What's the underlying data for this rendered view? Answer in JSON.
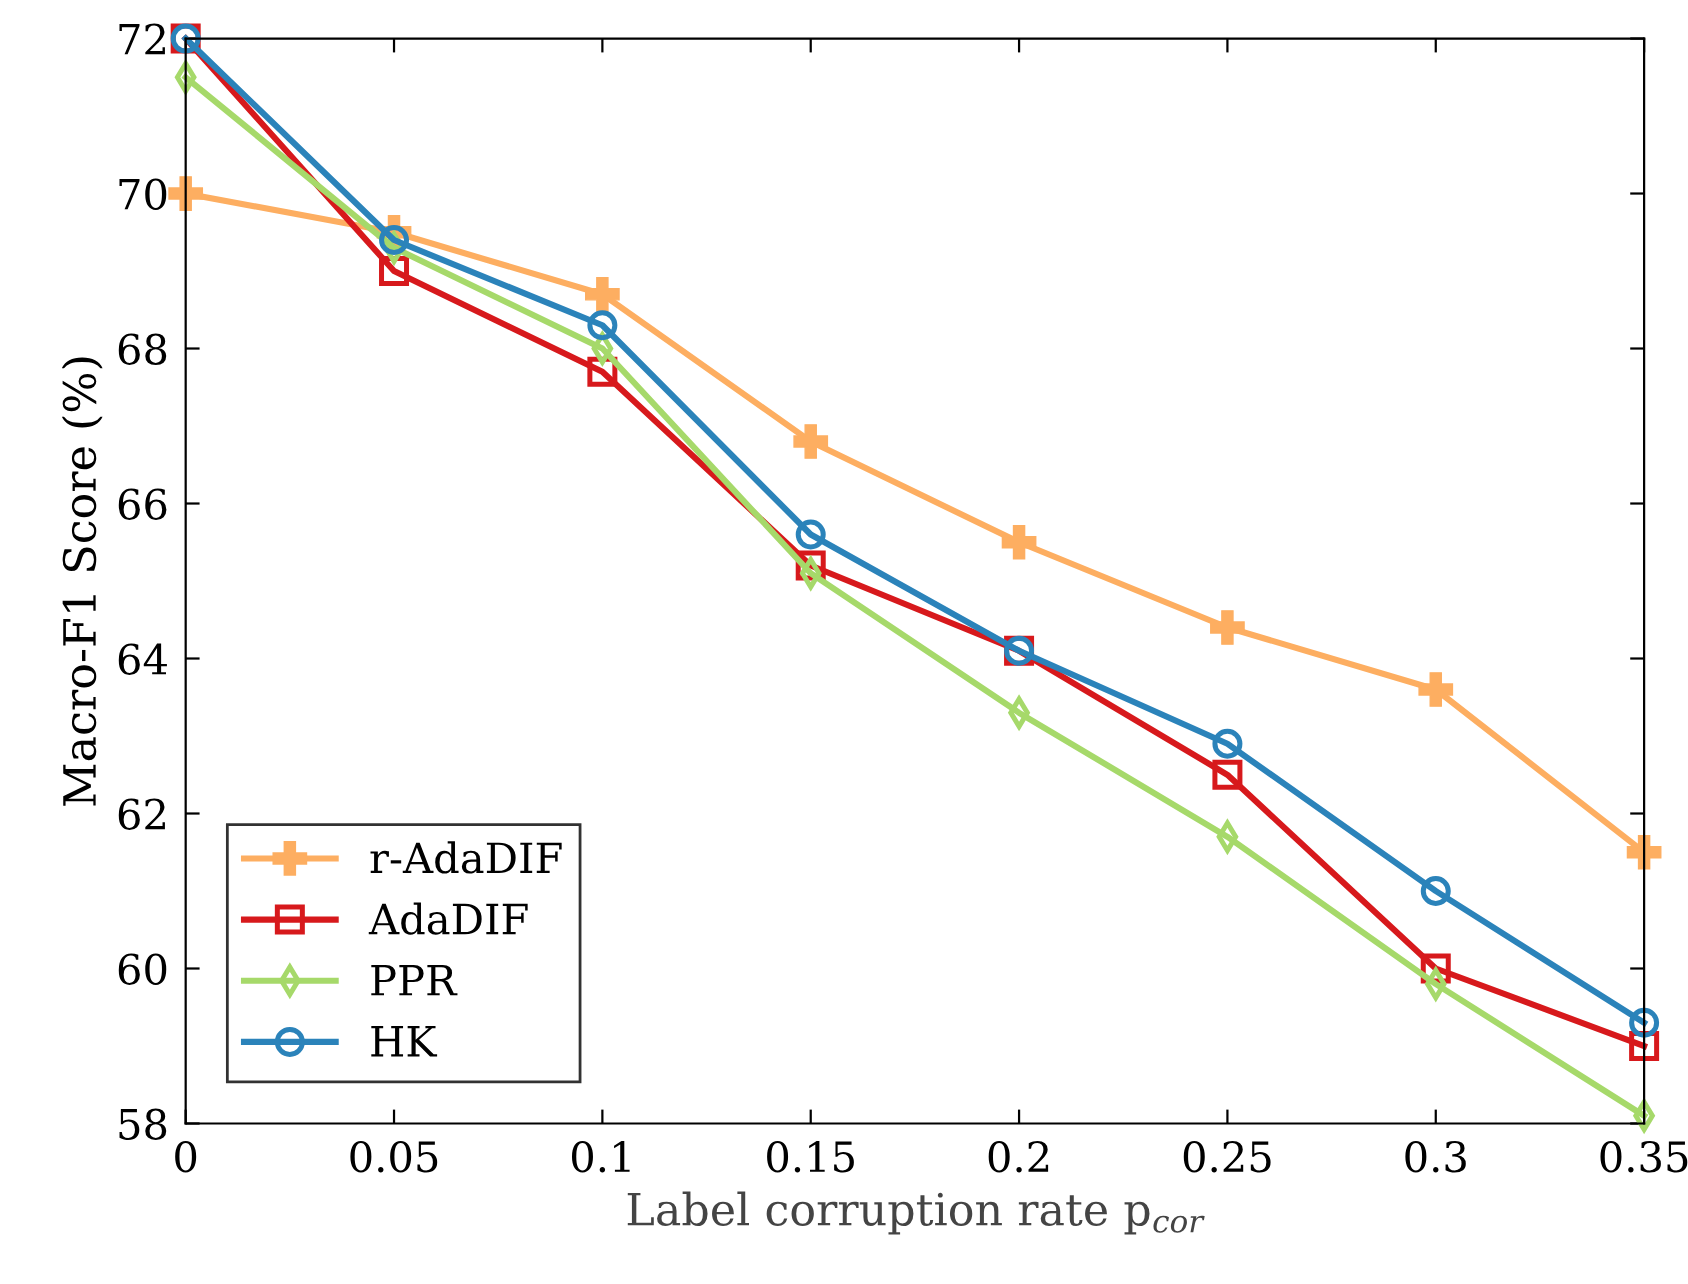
{
  "chart_data": {
    "type": "line",
    "xlabel": "Label corruption rate p$_{cor}$",
    "ylabel": "Macro-F1 Score (%)",
    "x": [
      0,
      0.05,
      0.1,
      0.15,
      0.2,
      0.25,
      0.3,
      0.35
    ],
    "series": [
      {
        "name": "r-AdaDIF",
        "color": "#fdae61",
        "marker": "cross",
        "values": [
          70.0,
          69.5,
          68.7,
          66.8,
          65.5,
          64.4,
          63.6,
          61.5
        ]
      },
      {
        "name": "AdaDIF",
        "color": "#d7191c",
        "marker": "square",
        "values": [
          72.0,
          69.0,
          67.7,
          65.2,
          64.1,
          62.5,
          60.0,
          59.0
        ]
      },
      {
        "name": "PPR",
        "color": "#a6d96a",
        "marker": "diamond",
        "values": [
          71.5,
          69.3,
          68.0,
          65.1,
          63.3,
          61.7,
          59.8,
          58.1
        ]
      },
      {
        "name": "HK",
        "color": "#2b83ba",
        "marker": "circle",
        "values": [
          72.0,
          69.4,
          68.3,
          65.6,
          64.1,
          62.9,
          61.0,
          59.3
        ]
      }
    ],
    "xlim": [
      0,
      0.35
    ],
    "ylim": [
      58,
      72
    ],
    "xticks": [
      0,
      0.05,
      0.1,
      0.15,
      0.2,
      0.25,
      0.3,
      0.35
    ],
    "yticks": [
      58,
      60,
      62,
      64,
      66,
      68,
      70,
      72
    ],
    "grid": false,
    "legend": "bottom left",
    "line_style": "solid"
  }
}
